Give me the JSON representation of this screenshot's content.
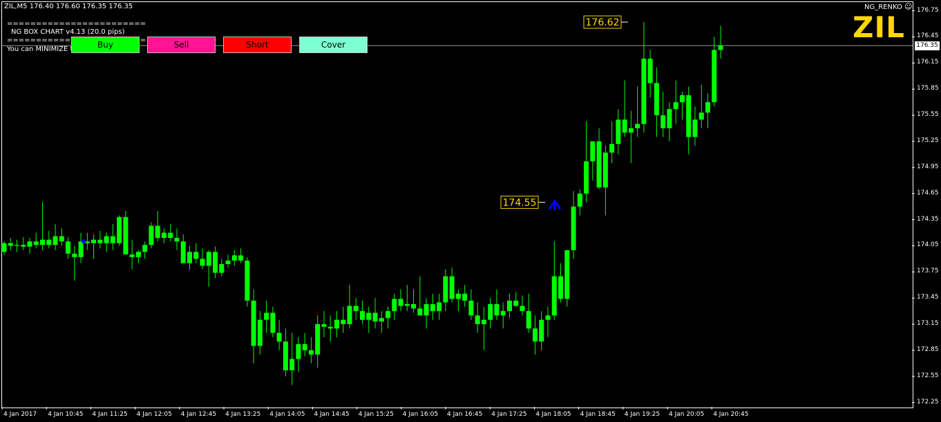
{
  "header": {
    "symbol_line": "ZIL,M5  176.40 176.60 176.35 176.35",
    "indicator_name": "NG_RENKO",
    "separator": "========================",
    "box_title": "NG BOX CHART  v4.13 (20.0 pips)",
    "minimize_hint": "You can MINIMIZE this window, now!",
    "big_symbol": "ZIL"
  },
  "buttons": [
    {
      "label": "Buy",
      "color": "#00ff00"
    },
    {
      "label": "Sell",
      "color": "#ff1493"
    },
    {
      "label": "Short",
      "color": "#ff0000"
    },
    {
      "label": "Cover",
      "color": "#7fffd4"
    }
  ],
  "current_price": "176.35",
  "colors": {
    "background": "#000000",
    "bull_candle": "#00ff00",
    "bear_candle": "#00ff00",
    "grid_and_axes": "#ffffff",
    "price_label": "#ffd700",
    "arrow": "#0000ff"
  },
  "chart_data": {
    "type": "candlestick",
    "ylim": [
      172.2,
      176.85
    ],
    "y_ticks": [
      "176.75",
      "176.45",
      "176.15",
      "175.85",
      "175.55",
      "175.25",
      "174.95",
      "174.65",
      "174.35",
      "174.05",
      "173.75",
      "173.45",
      "173.15",
      "172.85",
      "172.55",
      "172.25"
    ],
    "x_ticks": [
      "4 Jan 2017",
      "4 Jan 10:45",
      "4 Jan 11:25",
      "4 Jan 12:05",
      "4 Jan 12:45",
      "4 Jan 13:25",
      "4 Jan 14:05",
      "4 Jan 14:45",
      "4 Jan 15:25",
      "4 Jan 16:05",
      "4 Jan 16:45",
      "4 Jan 17:25",
      "4 Jan 18:05",
      "4 Jan 18:45",
      "4 Jan 19:25",
      "4 Jan 20:05",
      "4 Jan 20:45"
    ],
    "annotations": [
      {
        "label": "176.62",
        "price": 176.62
      },
      {
        "label": "174.55",
        "price": 174.55
      }
    ],
    "current_price": 176.35,
    "candles_ohlc": [
      [
        173.98,
        174.1,
        173.95,
        174.08
      ],
      [
        174.08,
        174.14,
        174.0,
        174.05
      ],
      [
        174.05,
        174.12,
        173.98,
        174.06
      ],
      [
        174.06,
        174.15,
        174.0,
        174.04
      ],
      [
        174.04,
        174.14,
        173.96,
        174.1
      ],
      [
        174.1,
        174.2,
        174.02,
        174.06
      ],
      [
        174.06,
        174.55,
        174.0,
        174.12
      ],
      [
        174.12,
        174.22,
        174.02,
        174.06
      ],
      [
        174.06,
        174.3,
        174.0,
        174.16
      ],
      [
        174.16,
        174.25,
        174.05,
        174.1
      ],
      [
        174.1,
        174.15,
        173.9,
        173.96
      ],
      [
        173.96,
        174.05,
        173.65,
        173.92
      ],
      [
        173.92,
        174.2,
        173.85,
        174.1
      ],
      [
        174.1,
        174.2,
        174.0,
        174.08
      ],
      [
        174.08,
        174.18,
        173.9,
        174.12
      ],
      [
        174.12,
        174.22,
        174.02,
        174.08
      ],
      [
        174.08,
        174.2,
        173.98,
        174.16
      ],
      [
        174.16,
        174.3,
        174.0,
        174.08
      ],
      [
        174.08,
        174.4,
        174.05,
        174.38
      ],
      [
        174.38,
        174.45,
        173.95,
        173.95
      ],
      [
        173.95,
        174.12,
        173.78,
        173.92
      ],
      [
        173.92,
        174.0,
        173.85,
        173.98
      ],
      [
        173.98,
        174.1,
        173.9,
        174.06
      ],
      [
        174.06,
        174.32,
        174.02,
        174.28
      ],
      [
        174.28,
        174.45,
        174.1,
        174.14
      ],
      [
        174.14,
        174.25,
        174.08,
        174.2
      ],
      [
        174.2,
        174.3,
        174.1,
        174.14
      ],
      [
        174.14,
        174.25,
        174.0,
        174.1
      ],
      [
        174.1,
        174.18,
        173.85,
        173.85
      ],
      [
        173.85,
        174.05,
        173.78,
        173.98
      ],
      [
        173.98,
        174.08,
        173.85,
        173.9
      ],
      [
        173.9,
        174.02,
        173.78,
        173.82
      ],
      [
        173.82,
        174.0,
        173.58,
        173.98
      ],
      [
        173.98,
        174.04,
        173.68,
        173.74
      ],
      [
        173.74,
        173.9,
        173.7,
        173.84
      ],
      [
        173.84,
        173.95,
        173.8,
        173.88
      ],
      [
        173.88,
        174.0,
        173.82,
        173.94
      ],
      [
        173.94,
        174.02,
        173.85,
        173.88
      ],
      [
        173.88,
        173.92,
        173.35,
        173.42
      ],
      [
        173.42,
        173.55,
        172.7,
        172.9
      ],
      [
        172.9,
        173.3,
        172.8,
        173.2
      ],
      [
        173.2,
        173.42,
        173.05,
        173.28
      ],
      [
        173.28,
        173.35,
        173.0,
        173.05
      ],
      [
        173.05,
        173.2,
        172.85,
        172.95
      ],
      [
        172.95,
        173.1,
        172.55,
        172.62
      ],
      [
        172.62,
        173.05,
        172.45,
        172.75
      ],
      [
        172.75,
        173.0,
        172.6,
        172.92
      ],
      [
        172.92,
        173.05,
        172.78,
        172.85
      ],
      [
        172.85,
        173.0,
        172.7,
        172.8
      ],
      [
        172.8,
        173.25,
        172.65,
        173.15
      ],
      [
        173.15,
        173.3,
        173.0,
        173.12
      ],
      [
        173.12,
        173.25,
        172.95,
        173.1
      ],
      [
        173.1,
        173.3,
        173.0,
        173.2
      ],
      [
        173.2,
        173.35,
        173.05,
        173.15
      ],
      [
        173.15,
        173.6,
        173.1,
        173.36
      ],
      [
        173.36,
        173.45,
        173.2,
        173.3
      ],
      [
        173.3,
        173.42,
        173.15,
        173.2
      ],
      [
        173.2,
        173.35,
        173.05,
        173.28
      ],
      [
        173.28,
        173.45,
        173.1,
        173.18
      ],
      [
        173.18,
        173.3,
        173.05,
        173.22
      ],
      [
        173.22,
        173.35,
        173.1,
        173.3
      ],
      [
        173.3,
        173.5,
        173.2,
        173.44
      ],
      [
        173.44,
        173.55,
        173.3,
        173.36
      ],
      [
        173.36,
        173.6,
        173.3,
        173.38
      ],
      [
        173.38,
        173.55,
        173.28,
        173.33
      ],
      [
        173.33,
        173.7,
        173.28,
        173.25
      ],
      [
        173.25,
        173.45,
        173.1,
        173.38
      ],
      [
        173.38,
        173.5,
        173.2,
        173.3
      ],
      [
        173.3,
        173.5,
        173.2,
        173.4
      ],
      [
        173.4,
        173.78,
        173.3,
        173.7
      ],
      [
        173.7,
        173.8,
        173.4,
        173.44
      ],
      [
        173.44,
        173.55,
        173.3,
        173.5
      ],
      [
        173.5,
        173.6,
        173.35,
        173.42
      ],
      [
        173.42,
        173.55,
        173.2,
        173.25
      ],
      [
        173.25,
        173.4,
        173.05,
        173.15
      ],
      [
        173.15,
        173.35,
        172.85,
        173.2
      ],
      [
        173.2,
        173.45,
        173.1,
        173.38
      ],
      [
        173.38,
        173.55,
        173.2,
        173.25
      ],
      [
        173.25,
        173.4,
        173.1,
        173.3
      ],
      [
        173.3,
        173.5,
        173.22,
        173.42
      ],
      [
        173.42,
        173.52,
        173.35,
        173.36
      ],
      [
        173.36,
        173.48,
        173.25,
        173.3
      ],
      [
        173.3,
        173.5,
        173.05,
        173.1
      ],
      [
        173.1,
        173.25,
        172.8,
        172.95
      ],
      [
        172.95,
        173.3,
        172.85,
        173.2
      ],
      [
        173.2,
        173.35,
        173.0,
        173.25
      ],
      [
        173.25,
        174.1,
        173.2,
        173.7
      ],
      [
        173.7,
        173.85,
        173.4,
        173.44
      ],
      [
        173.44,
        174.0,
        173.35,
        174.0
      ],
      [
        174.0,
        174.68,
        173.9,
        174.5
      ],
      [
        174.5,
        174.7,
        174.4,
        174.65
      ],
      [
        174.65,
        175.48,
        174.55,
        175.02
      ],
      [
        175.02,
        175.25,
        174.8,
        175.25
      ],
      [
        175.25,
        175.4,
        174.7,
        174.72
      ],
      [
        174.72,
        175.2,
        174.4,
        175.12
      ],
      [
        175.12,
        175.48,
        175.0,
        175.22
      ],
      [
        175.22,
        175.62,
        175.1,
        175.5
      ],
      [
        175.5,
        175.95,
        175.3,
        175.35
      ],
      [
        175.35,
        175.6,
        175.0,
        175.4
      ],
      [
        175.4,
        175.88,
        175.3,
        175.45
      ],
      [
        175.45,
        176.62,
        175.35,
        176.2
      ],
      [
        176.2,
        176.3,
        175.75,
        175.92
      ],
      [
        175.92,
        176.1,
        175.3,
        175.55
      ],
      [
        175.55,
        175.82,
        175.3,
        175.4
      ],
      [
        175.4,
        175.7,
        175.25,
        175.62
      ],
      [
        175.62,
        175.95,
        175.45,
        175.7
      ],
      [
        175.7,
        175.82,
        175.5,
        175.78
      ],
      [
        175.78,
        175.88,
        175.1,
        175.3
      ],
      [
        175.3,
        175.65,
        175.2,
        175.5
      ],
      [
        175.5,
        175.9,
        175.4,
        175.58
      ],
      [
        175.58,
        175.8,
        175.4,
        175.7
      ],
      [
        175.7,
        176.45,
        175.65,
        176.3
      ],
      [
        176.3,
        176.58,
        176.2,
        176.35
      ]
    ]
  }
}
